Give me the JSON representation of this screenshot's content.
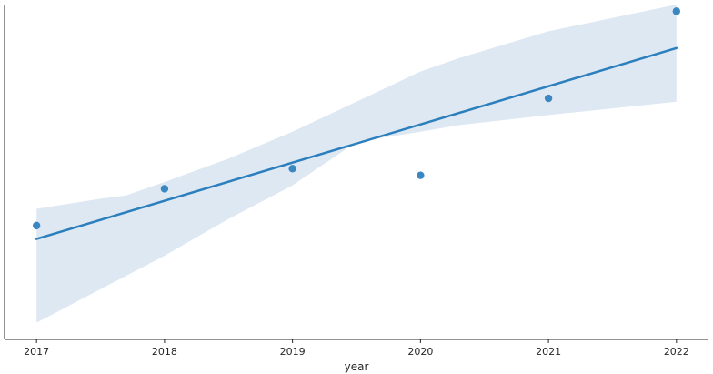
{
  "chart_data": {
    "type": "scatter",
    "xlabel": "year",
    "ylabel": "",
    "x_ticks": [
      "2017",
      "2018",
      "2019",
      "2020",
      "2021",
      "2022"
    ],
    "xlim": [
      2016.75,
      2022.25
    ],
    "ylim": [
      0,
      1
    ],
    "y_ticks_shown": false,
    "grid": false,
    "points": [
      {
        "x": 2017,
        "y": 0.34
      },
      {
        "x": 2018,
        "y": 0.45
      },
      {
        "x": 2019,
        "y": 0.51
      },
      {
        "x": 2020,
        "y": 0.49
      },
      {
        "x": 2021,
        "y": 0.72
      },
      {
        "x": 2022,
        "y": 0.98
      }
    ],
    "fit_line": {
      "x": [
        2017,
        2022
      ],
      "y": [
        0.3,
        0.87
      ]
    },
    "confidence_band": {
      "x": [
        2017,
        2017.5,
        2017.7,
        2018,
        2018.5,
        2019,
        2019.5,
        2020,
        2020.3,
        2021,
        2022
      ],
      "lower": [
        0.05,
        0.15,
        0.19,
        0.25,
        0.36,
        0.46,
        0.59,
        0.62,
        0.64,
        0.67,
        0.71
      ],
      "upper": [
        0.39,
        0.42,
        0.43,
        0.47,
        0.54,
        0.62,
        0.71,
        0.8,
        0.84,
        0.92,
        1.0
      ]
    },
    "colors": {
      "points": "#3a87c2",
      "line": "#2c7fbd",
      "band": "#dde8f3",
      "axis": "#262626"
    }
  }
}
